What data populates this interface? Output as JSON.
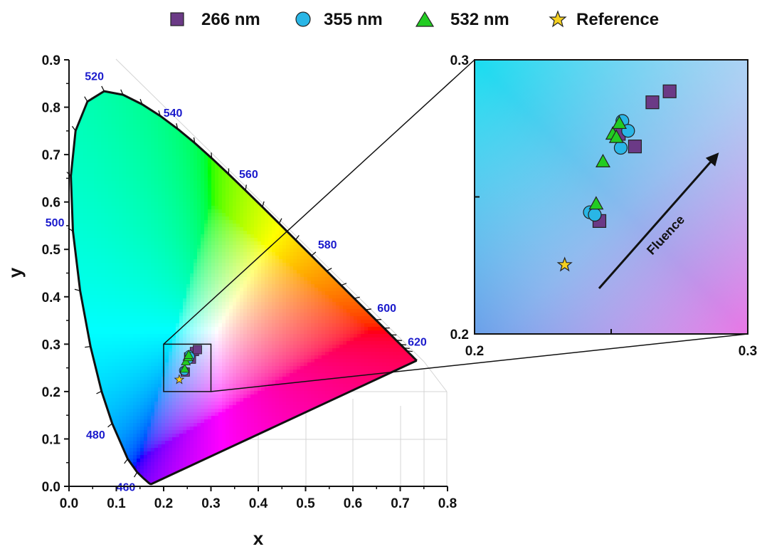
{
  "chart_data": [
    {
      "type": "scatter",
      "panel": "main",
      "xlabel": "x",
      "ylabel": "y",
      "xlim": [
        0.0,
        0.8
      ],
      "ylim": [
        0.0,
        0.9
      ],
      "xticks": [
        "0.0",
        "0.1",
        "0.2",
        "0.3",
        "0.4",
        "0.5",
        "0.6",
        "0.7",
        "0.8"
      ],
      "yticks": [
        "0.0",
        "0.1",
        "0.2",
        "0.3",
        "0.4",
        "0.5",
        "0.6",
        "0.7",
        "0.8",
        "0.9"
      ],
      "grid": false,
      "legend_position": "top",
      "locus_wavelength_labels": [
        {
          "text": "460",
          "x": 0.144,
          "y": 0.03
        },
        {
          "text": "480",
          "x": 0.091,
          "y": 0.133
        },
        {
          "text": "500",
          "x": 0.008,
          "y": 0.538
        },
        {
          "text": "520",
          "x": 0.074,
          "y": 0.834
        },
        {
          "text": "540",
          "x": 0.23,
          "y": 0.754
        },
        {
          "text": "560",
          "x": 0.373,
          "y": 0.624
        },
        {
          "text": "580",
          "x": 0.512,
          "y": 0.487
        },
        {
          "text": "600",
          "x": 0.627,
          "y": 0.372
        },
        {
          "text": "620",
          "x": 0.691,
          "y": 0.308
        }
      ],
      "zoom_box": {
        "x": [
          0.2,
          0.3
        ],
        "y": [
          0.2,
          0.3
        ]
      }
    },
    {
      "type": "scatter",
      "panel": "inset",
      "xlim": [
        0.2,
        0.3
      ],
      "ylim": [
        0.2,
        0.3
      ],
      "xticks": [
        "0.2",
        "",
        "0.3"
      ],
      "yticks": [
        "0.2",
        "",
        "0.3"
      ],
      "series": [
        {
          "name": "266 nm",
          "marker": "square",
          "color": "#6b3a86",
          "points": [
            [
              0.2457,
              0.2412
            ],
            [
              0.2528,
              0.273
            ],
            [
              0.2587,
              0.2684
            ],
            [
              0.2651,
              0.2845
            ],
            [
              0.2714,
              0.2885
            ]
          ]
        },
        {
          "name": "355 nm",
          "marker": "circle",
          "color": "#29b6e6",
          "points": [
            [
              0.2422,
              0.2444
            ],
            [
              0.244,
              0.2435
            ],
            [
              0.2535,
              0.2679
            ],
            [
              0.2541,
              0.2777
            ],
            [
              0.2562,
              0.2741
            ]
          ]
        },
        {
          "name": "532 nm",
          "marker": "triangle",
          "color": "#22cc22",
          "points": [
            [
              0.2445,
              0.2473
            ],
            [
              0.247,
              0.2627
            ],
            [
              0.2506,
              0.2728
            ],
            [
              0.2519,
              0.2716
            ],
            [
              0.253,
              0.2767
            ]
          ]
        },
        {
          "name": "Reference",
          "marker": "star",
          "color": "#f5d020",
          "points": [
            [
              0.233,
              0.2252
            ]
          ]
        }
      ],
      "annotations": [
        {
          "text": "Fluence",
          "arrow_from": [
            0.2413,
            0.2158
          ],
          "arrow_to": [
            0.2398,
            0.225
          ]
        }
      ]
    }
  ]
}
